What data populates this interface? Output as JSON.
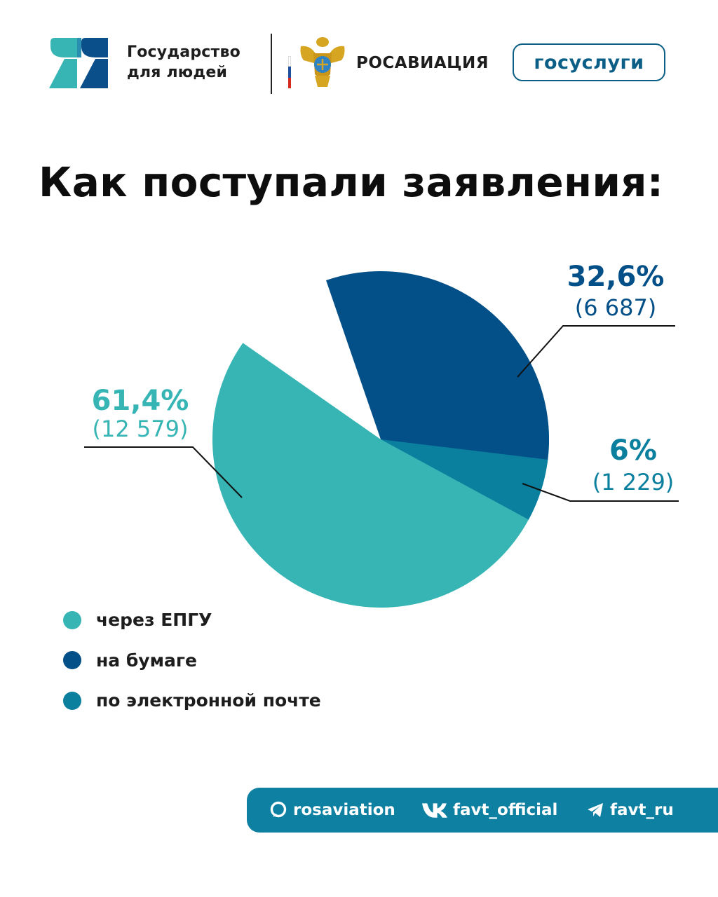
{
  "header": {
    "brand_line1": "Государство",
    "brand_line2": "для людей",
    "agency": "РОСАВИАЦИЯ",
    "gosuslugi": "госуслуги"
  },
  "title": "Как поступали заявления:",
  "colors": {
    "epgu": "#37b5b4",
    "paper": "#034f88",
    "email": "#0b7f9e",
    "footer": "#0e80a1",
    "brand_teal": "#37b5b4",
    "brand_blue": "#0a4f8a"
  },
  "chart_data": {
    "type": "pie",
    "title": "Как поступали заявления:",
    "legend_position": "bottom-left",
    "slices": [
      {
        "label": "через ЕПГУ",
        "percent_label": "61,4%",
        "count_label": "(12 579)",
        "value": 12579,
        "color": "#37b5b4"
      },
      {
        "label": "на бумаге",
        "percent_label": "32,6%",
        "count_label": "(6 687)",
        "value": 6687,
        "color": "#034f88"
      },
      {
        "label": "по электронной почте",
        "percent_label": "6%",
        "count_label": "(1 229)",
        "value": 1229,
        "color": "#0b7f9e"
      }
    ]
  },
  "footer": {
    "items": [
      {
        "icon": "rutube-icon",
        "label": "rosaviation"
      },
      {
        "icon": "vk-icon",
        "label": "favt_official"
      },
      {
        "icon": "telegram-icon",
        "label": "favt_ru"
      }
    ]
  }
}
